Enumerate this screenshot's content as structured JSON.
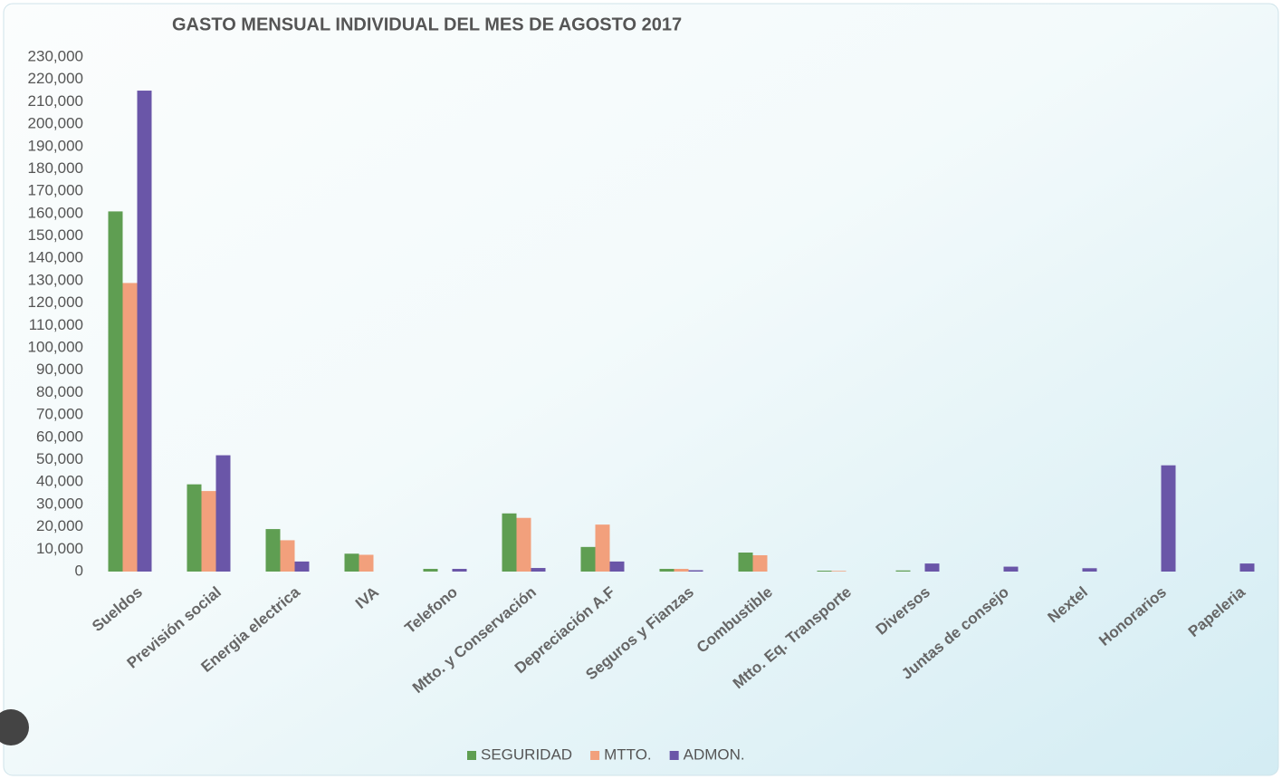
{
  "chart_data": {
    "type": "bar",
    "title": "GASTO MENSUAL INDIVIDUAL DEL MES DE AGOSTO 2017",
    "categories": [
      "Sueldos",
      "Previsión social",
      "Energia electrica",
      "IVA",
      "Telefono",
      "Mtto. y Conservación",
      "Depreciación A.F",
      "Seguros y Fianzas",
      "Combustible",
      "Mtto. Eq. Transporte",
      "Diversos",
      "Juntas de consejo",
      "Nextel",
      "Honorarios",
      "Papeleria"
    ],
    "series": [
      {
        "name": "SEGURIDAD",
        "color": "#5f9e52",
        "values": [
          161000,
          39000,
          19000,
          8000,
          1200,
          26000,
          11000,
          1200,
          8500,
          400,
          500,
          0,
          0,
          0,
          0
        ]
      },
      {
        "name": "MTTO.",
        "color": "#f2a07c",
        "values": [
          129000,
          36000,
          14000,
          7500,
          0,
          24000,
          21000,
          1200,
          7300,
          300,
          0,
          0,
          0,
          0,
          0
        ]
      },
      {
        "name": "ADMON.",
        "color": "#6a56a8",
        "values": [
          215000,
          52000,
          4500,
          0,
          1200,
          1600,
          4500,
          600,
          0,
          0,
          3600,
          2200,
          1500,
          47500,
          3600
        ]
      }
    ],
    "ylim": [
      0,
      230000
    ],
    "yticks": [
      0,
      {
        "value": 10000,
        "label": "10,000"
      },
      {
        "value": 20000,
        "label": "20,000"
      },
      {
        "value": 30000,
        "label": "30,000"
      },
      {
        "value": 40000,
        "label": "40,000"
      },
      {
        "value": 50000,
        "label": "50,000"
      },
      {
        "value": 60000,
        "label": "60,000"
      },
      {
        "value": 70000,
        "label": "70,000"
      },
      {
        "value": 80000,
        "label": "80,000"
      },
      {
        "value": 90000,
        "label": "90,000"
      },
      {
        "value": 100000,
        "label": "100,000"
      },
      {
        "value": 110000,
        "label": "110,000"
      },
      {
        "value": 120000,
        "label": "120,000"
      },
      {
        "value": 130000,
        "label": "130,000"
      },
      {
        "value": 140000,
        "label": "140,000"
      },
      {
        "value": 150000,
        "label": "150,000"
      },
      {
        "value": 160000,
        "label": "160,000"
      },
      {
        "value": 170000,
        "label": "170,000"
      },
      {
        "value": 180000,
        "label": "180,000"
      },
      {
        "value": 190000,
        "label": "190,000"
      },
      {
        "value": 200000,
        "label": "200,000"
      },
      {
        "value": 210000,
        "label": "210,000"
      },
      {
        "value": 220000,
        "label": "220,000"
      },
      {
        "value": 230000,
        "label": "230,000"
      }
    ],
    "grid": false,
    "legend": "bottom"
  }
}
